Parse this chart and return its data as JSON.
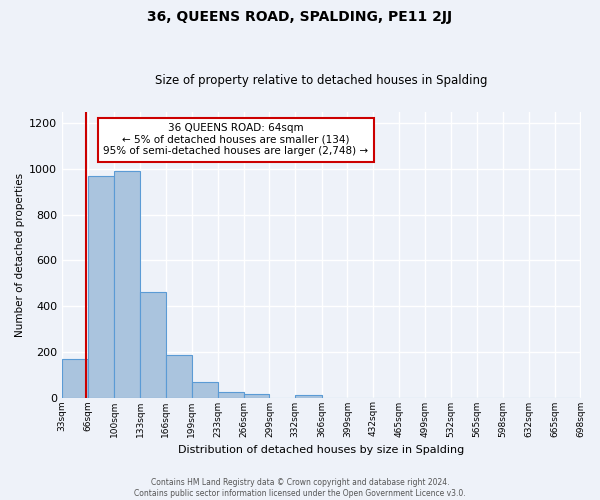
{
  "title": "36, QUEENS ROAD, SPALDING, PE11 2JJ",
  "subtitle": "Size of property relative to detached houses in Spalding",
  "xlabel": "Distribution of detached houses by size in Spalding",
  "ylabel": "Number of detached properties",
  "bar_values": [
    170,
    970,
    990,
    460,
    185,
    70,
    25,
    15,
    0,
    10,
    0,
    0,
    0,
    0,
    0,
    0,
    0,
    0,
    0,
    0
  ],
  "bin_labels": [
    "33sqm",
    "66sqm",
    "100sqm",
    "133sqm",
    "166sqm",
    "199sqm",
    "233sqm",
    "266sqm",
    "299sqm",
    "332sqm",
    "366sqm",
    "399sqm",
    "432sqm",
    "465sqm",
    "499sqm",
    "532sqm",
    "565sqm",
    "598sqm",
    "632sqm",
    "665sqm",
    "698sqm"
  ],
  "bin_edges": [
    33,
    66,
    100,
    133,
    166,
    199,
    233,
    266,
    299,
    332,
    366,
    399,
    432,
    465,
    499,
    532,
    565,
    598,
    632,
    665,
    698
  ],
  "bar_color": "#aac4de",
  "bar_edge_color": "#5b9bd5",
  "red_line_x": 64,
  "annotation_title": "36 QUEENS ROAD: 64sqm",
  "annotation_line1": "← 5% of detached houses are smaller (134)",
  "annotation_line2": "95% of semi-detached houses are larger (2,748) →",
  "annotation_box_color": "#ffffff",
  "annotation_border_color": "#cc0000",
  "red_line_color": "#cc0000",
  "ylim": [
    0,
    1250
  ],
  "yticks": [
    0,
    200,
    400,
    600,
    800,
    1000,
    1200
  ],
  "footer_line1": "Contains HM Land Registry data © Crown copyright and database right 2024.",
  "footer_line2": "Contains public sector information licensed under the Open Government Licence v3.0.",
  "background_color": "#eef2f9",
  "grid_color": "#ffffff"
}
